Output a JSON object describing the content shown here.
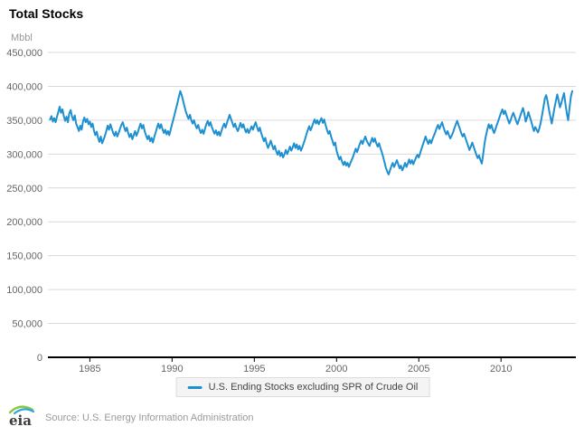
{
  "header": {
    "title": "Total Stocks"
  },
  "chart_data": {
    "type": "line",
    "title": "Total Stocks",
    "ylabel": "Mbbl",
    "xlabel": "",
    "grid": "horizontal",
    "legend_position": "bottom",
    "xlim": [
      1982.45,
      2014.55
    ],
    "ylim": [
      0,
      450000
    ],
    "x_ticks": [
      1985,
      1990,
      1995,
      2000,
      2005,
      2010
    ],
    "y_ticks": [
      0,
      50000,
      100000,
      150000,
      200000,
      250000,
      300000,
      350000,
      400000,
      450000
    ],
    "colors": {
      "line": "#1e8fd0",
      "grid": "#d9d9d9",
      "axis": "#000000",
      "tick_text": "#666666"
    },
    "series": [
      {
        "name": "U.S. Ending Stocks excluding SPR of Crude Oil",
        "color": "#1e8fd0",
        "unit": "Mbbl",
        "x_start": 1982.583,
        "x_step": 0.08333,
        "values": [
          351000,
          356000,
          348000,
          353000,
          347000,
          355000,
          362000,
          370000,
          361000,
          366000,
          356000,
          349000,
          355000,
          347000,
          360000,
          365000,
          355000,
          350000,
          357000,
          345000,
          340000,
          334000,
          342000,
          336000,
          348000,
          354000,
          347000,
          352000,
          344000,
          348000,
          340000,
          345000,
          335000,
          328000,
          333000,
          324000,
          318000,
          326000,
          316000,
          321000,
          327000,
          334000,
          342000,
          336000,
          344000,
          338000,
          331000,
          327000,
          333000,
          326000,
          331000,
          337000,
          343000,
          347000,
          340000,
          334000,
          339000,
          331000,
          325000,
          330000,
          322000,
          328000,
          334000,
          327000,
          332000,
          339000,
          345000,
          338000,
          343000,
          334000,
          328000,
          322000,
          327000,
          319000,
          324000,
          317000,
          325000,
          332000,
          339000,
          345000,
          338000,
          344000,
          337000,
          331000,
          336000,
          329000,
          334000,
          328000,
          336000,
          344000,
          352000,
          360000,
          368000,
          376000,
          385000,
          393000,
          387000,
          379000,
          371000,
          363000,
          357000,
          352000,
          358000,
          350000,
          345000,
          350000,
          343000,
          338000,
          343000,
          336000,
          331000,
          336000,
          330000,
          337000,
          344000,
          349000,
          342000,
          347000,
          340000,
          335000,
          330000,
          335000,
          328000,
          333000,
          327000,
          334000,
          340000,
          345000,
          339000,
          346000,
          352000,
          358000,
          352000,
          346000,
          340000,
          345000,
          338000,
          334000,
          340000,
          346000,
          339000,
          344000,
          337000,
          332000,
          337000,
          331000,
          336000,
          341000,
          336000,
          342000,
          347000,
          340000,
          334000,
          339000,
          331000,
          325000,
          319000,
          324000,
          315000,
          309000,
          314000,
          320000,
          313000,
          307000,
          312000,
          304000,
          299000,
          305000,
          297000,
          302000,
          295000,
          300000,
          306000,
          300000,
          305000,
          311000,
          305000,
          310000,
          316000,
          309000,
          314000,
          307000,
          312000,
          305000,
          310000,
          316000,
          322000,
          329000,
          335000,
          341000,
          335000,
          340000,
          346000,
          351000,
          345000,
          350000,
          344000,
          349000,
          353000,
          346000,
          351000,
          343000,
          336000,
          330000,
          334000,
          326000,
          320000,
          313000,
          317000,
          305000,
          298000,
          292000,
          296000,
          289000,
          284000,
          289000,
          283000,
          287000,
          281000,
          286000,
          291000,
          296000,
          302000,
          308000,
          303000,
          309000,
          315000,
          320000,
          315000,
          321000,
          326000,
          320000,
          316000,
          312000,
          318000,
          324000,
          318000,
          323000,
          316000,
          311000,
          316000,
          309000,
          303000,
          296000,
          288000,
          280000,
          274000,
          270000,
          276000,
          282000,
          287000,
          281000,
          286000,
          291000,
          285000,
          279000,
          283000,
          276000,
          281000,
          287000,
          281000,
          286000,
          292000,
          286000,
          291000,
          285000,
          290000,
          295000,
          299000,
          295000,
          301000,
          308000,
          314000,
          320000,
          326000,
          320000,
          315000,
          321000,
          316000,
          322000,
          327000,
          332000,
          338000,
          343000,
          337000,
          342000,
          347000,
          340000,
          334000,
          329000,
          334000,
          328000,
          323000,
          327000,
          332000,
          338000,
          344000,
          349000,
          343000,
          337000,
          331000,
          326000,
          330000,
          324000,
          318000,
          312000,
          306000,
          311000,
          317000,
          311000,
          305000,
          299000,
          294000,
          298000,
          291000,
          286000,
          300000,
          316000,
          327000,
          336000,
          344000,
          338000,
          343000,
          336000,
          331000,
          337000,
          343000,
          349000,
          355000,
          361000,
          366000,
          359000,
          364000,
          357000,
          351000,
          345000,
          350000,
          356000,
          361000,
          355000,
          349000,
          344000,
          350000,
          356000,
          362000,
          368000,
          360000,
          348000,
          354000,
          362000,
          355000,
          349000,
          341000,
          334000,
          340000,
          336000,
          332000,
          338000,
          347000,
          358000,
          370000,
          382000,
          387000,
          378000,
          365000,
          355000,
          345000,
          356000,
          368000,
          378000,
          388000,
          379000,
          369000,
          375000,
          383000,
          390000,
          375000,
          360000,
          350000,
          368000,
          385000,
          393000
        ]
      }
    ]
  },
  "legend": {
    "items": [
      {
        "label": "U.S. Ending Stocks excluding SPR of Crude Oil",
        "color": "#1e8fd0"
      }
    ]
  },
  "footer": {
    "logo_text": "eia",
    "source": "Source: U.S. Energy Information Administration"
  }
}
